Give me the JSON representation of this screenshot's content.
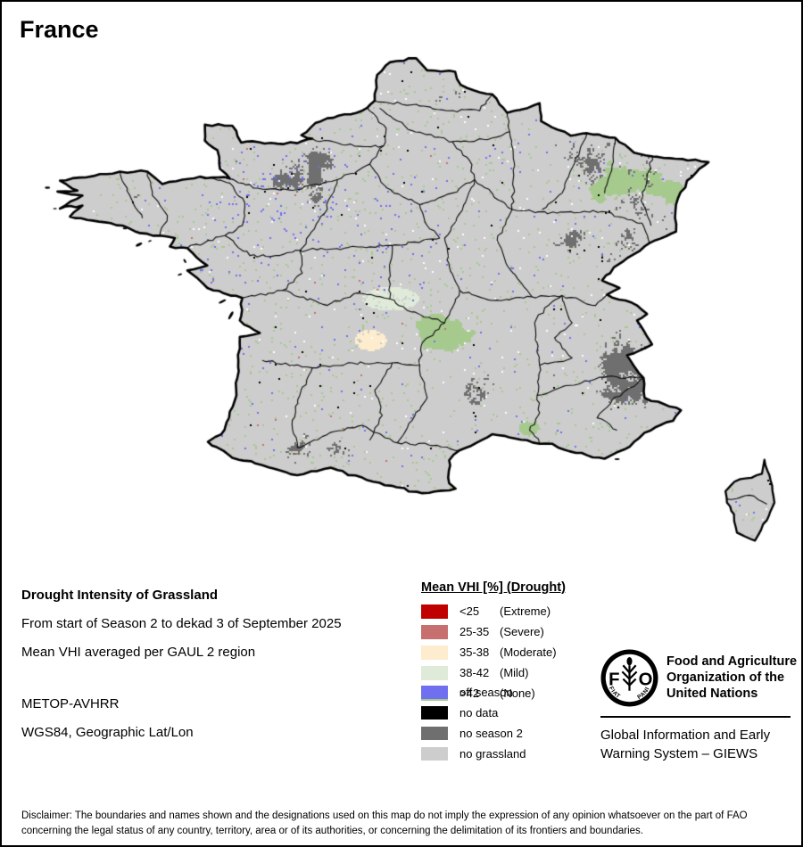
{
  "title": "France",
  "info": {
    "product_title": "Drought Intensity of Grassland",
    "period": "From start of Season 2 to dekad 3 of September 2025",
    "aggregation": "Mean VHI averaged per GAUL 2 region",
    "sensor": "METOP-AVHRR",
    "projection": "WGS84, Geographic Lat/Lon"
  },
  "legend": {
    "title": "Mean VHI [%] (Drought)",
    "items": [
      {
        "value": "<25",
        "qualifier": "(Extreme)",
        "color": "#c00000"
      },
      {
        "value": "25-35",
        "qualifier": "(Severe)",
        "color": "#c76f6f"
      },
      {
        "value": "35-38",
        "qualifier": "(Moderate)",
        "color": "#fdeccd"
      },
      {
        "value": "38-42",
        "qualifier": "(Mild)",
        "color": "#dfead9"
      },
      {
        "value": ">42",
        "qualifier": "(None)",
        "color": "#a6ca8e"
      }
    ]
  },
  "legend2": {
    "items": [
      {
        "label": "off season",
        "color": "#6f6fef"
      },
      {
        "label": "no data",
        "color": "#000000"
      },
      {
        "label": "no season 2",
        "color": "#6f6f6f"
      },
      {
        "label": "no grassland",
        "color": "#cdcdcd"
      }
    ]
  },
  "fao": {
    "org_name": "Food and Agriculture Organization of the United Nations",
    "giews": "Global Information and Early Warning System – GIEWS",
    "logo_letter_left": "F",
    "logo_letter_right": "O",
    "logo_motto_left": "FIAT",
    "logo_motto_right": "PANIS"
  },
  "disclaimer": "Disclaimer: The boundaries and names shown and the designations used on this map do not imply the expression of any opinion whatsoever on the part of FAO concerning the legal status of any country, territory, area or of its authorities, or concerning the delimitation of its frontiers and boundaries."
}
